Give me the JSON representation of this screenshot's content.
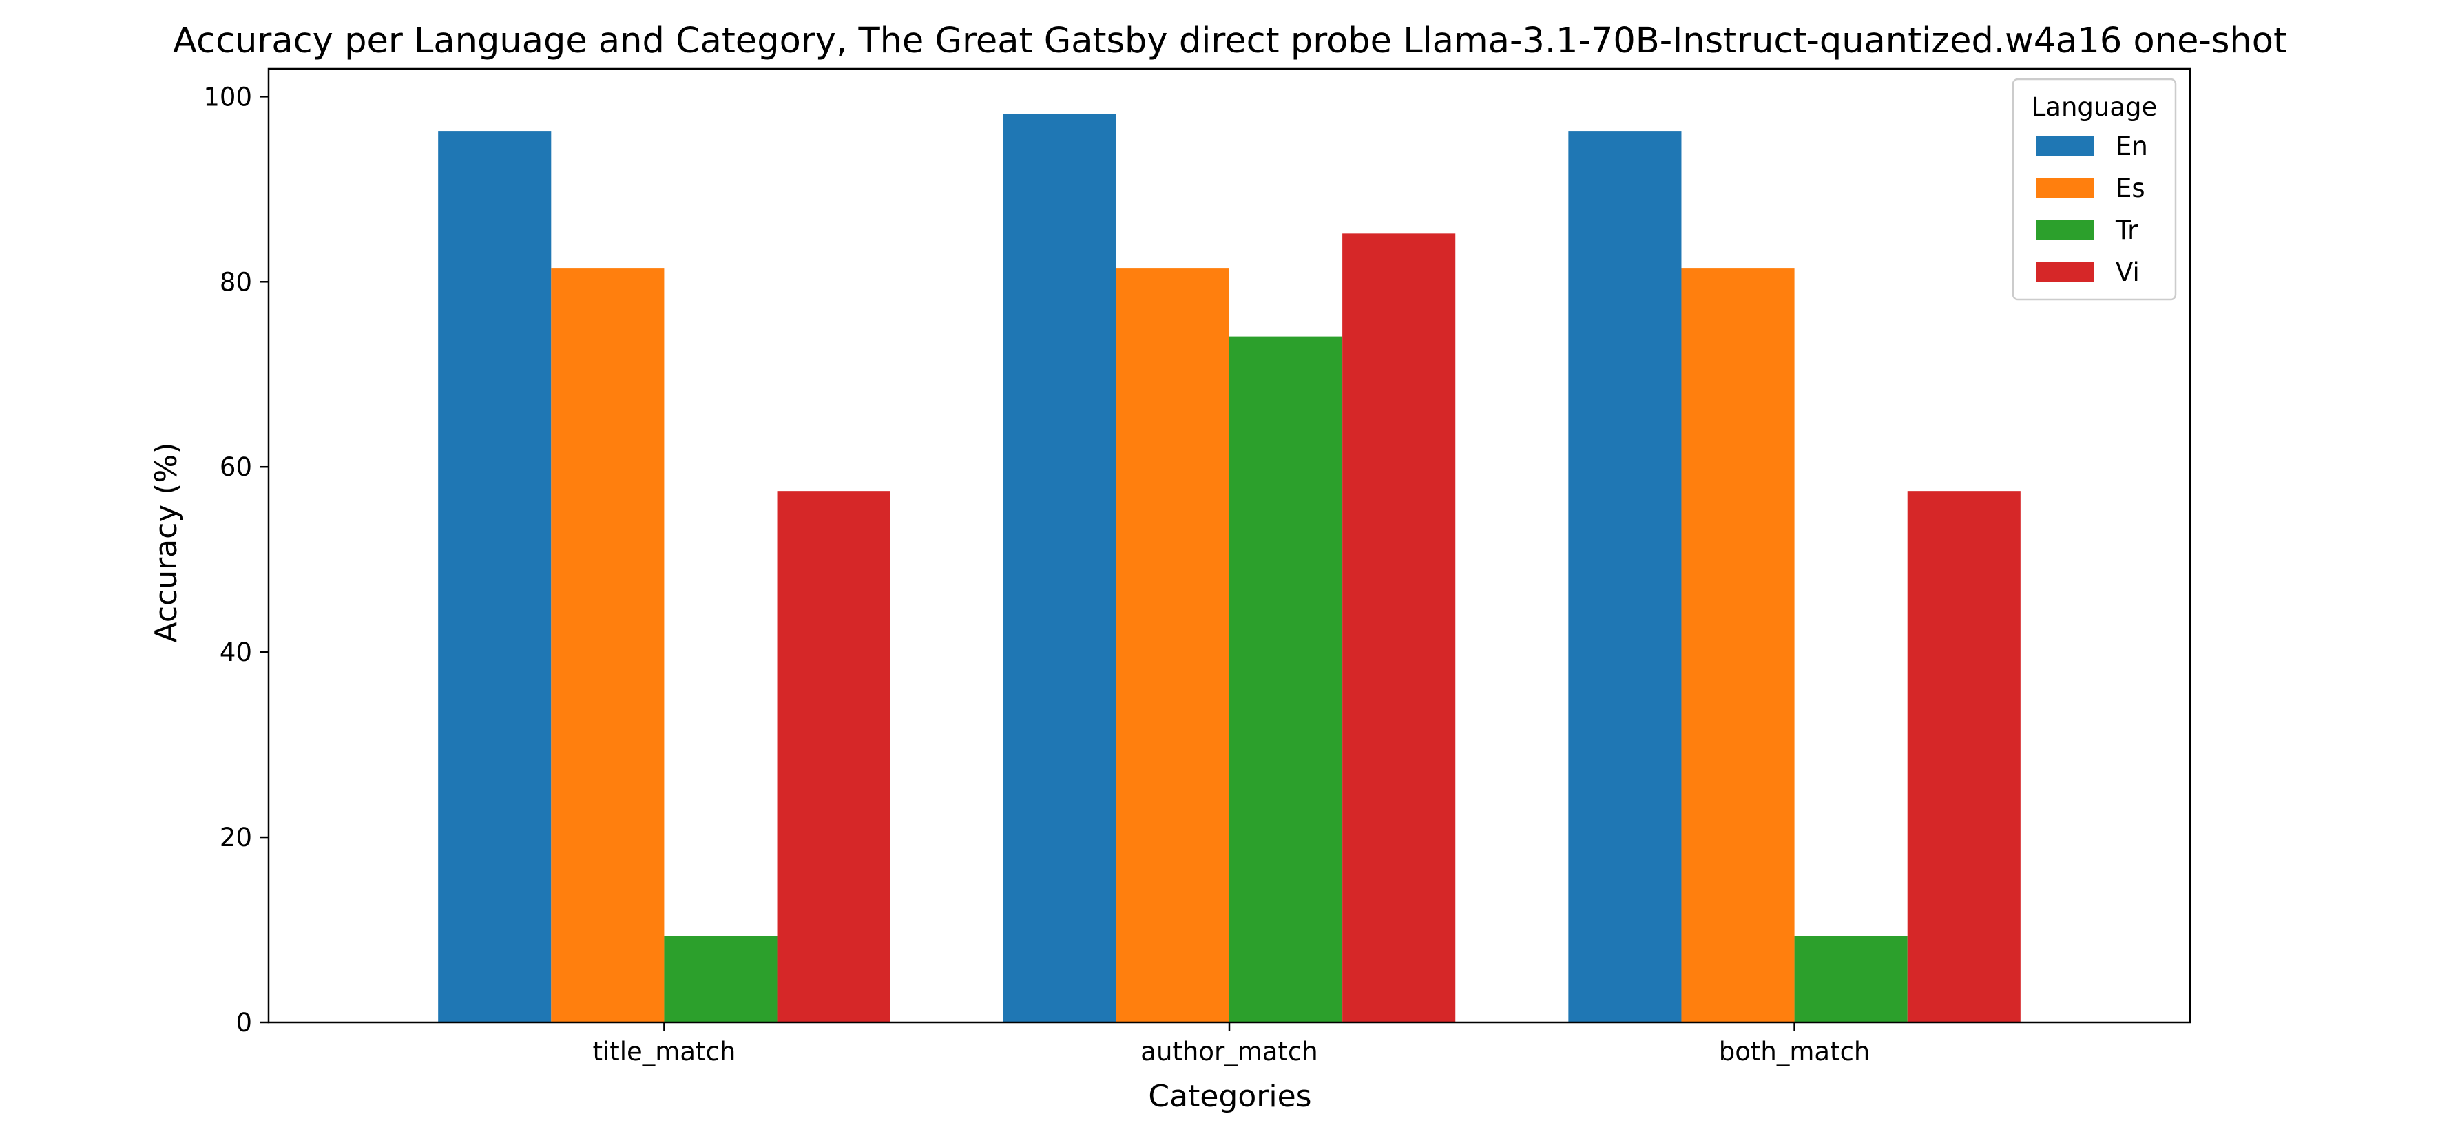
{
  "chart_data": {
    "type": "bar",
    "title": "Accuracy per Language and Category, The Great Gatsby direct probe Llama-3.1-70B-Instruct-quantized.w4a16 one-shot",
    "xlabel": "Categories",
    "ylabel": "Accuracy (%)",
    "categories": [
      "title_match",
      "author_match",
      "both_match"
    ],
    "ylim": [
      0,
      103
    ],
    "yticks": [
      0,
      20,
      40,
      60,
      80,
      100
    ],
    "grid": false,
    "legend": {
      "title": "Language",
      "placement": "top-right"
    },
    "series": [
      {
        "name": "En",
        "color": "#1f77b4",
        "values": [
          96.3,
          98.1,
          96.3
        ]
      },
      {
        "name": "Es",
        "color": "#ff7f0e",
        "values": [
          81.5,
          81.5,
          81.5
        ]
      },
      {
        "name": "Tr",
        "color": "#2ca02c",
        "values": [
          9.3,
          74.1,
          9.3
        ]
      },
      {
        "name": "Vi",
        "color": "#d62728",
        "values": [
          57.4,
          85.2,
          57.4
        ]
      }
    ]
  }
}
